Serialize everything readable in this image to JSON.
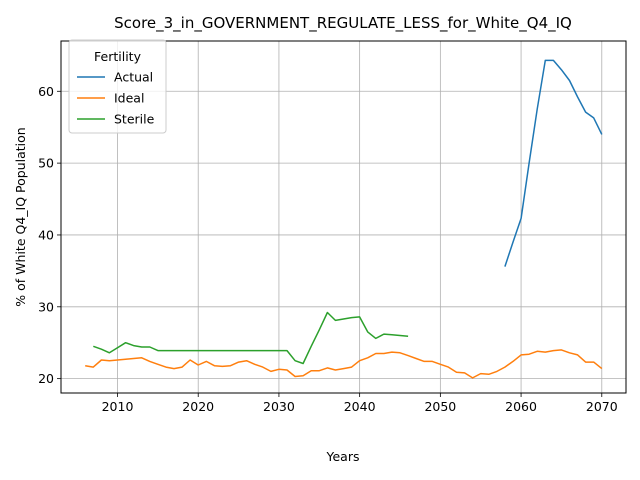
{
  "chart_data": {
    "type": "line",
    "title": "Score_3_in_GOVERNMENT_REGULATE_LESS_for_White_Q4_IQ",
    "xlabel": "Years",
    "ylabel": "% of White Q4_IQ Population",
    "xlim": [
      2003,
      2073
    ],
    "ylim": [
      18,
      67
    ],
    "xticks": [
      2010,
      2020,
      2030,
      2040,
      2050,
      2060,
      2070
    ],
    "yticks": [
      20,
      30,
      40,
      50,
      60
    ],
    "grid": true,
    "legend": {
      "title": "Fertility",
      "placement": "top-left"
    },
    "series": [
      {
        "name": "Actual",
        "color": "#1f77b4",
        "x": [
          2058,
          2059,
          2060,
          2061,
          2062,
          2063,
          2064,
          2065,
          2066,
          2067,
          2068,
          2069,
          2070
        ],
        "y": [
          35.6,
          39.0,
          42.3,
          50.0,
          57.5,
          64.3,
          64.3,
          63.0,
          61.5,
          59.2,
          57.1,
          56.3,
          54.0
        ]
      },
      {
        "name": "Ideal",
        "color": "#ff7f0e",
        "x": [
          2006,
          2007,
          2008,
          2009,
          2010,
          2011,
          2012,
          2013,
          2014,
          2015,
          2016,
          2017,
          2018,
          2019,
          2020,
          2021,
          2022,
          2023,
          2024,
          2025,
          2026,
          2027,
          2028,
          2029,
          2030,
          2031,
          2032,
          2033,
          2034,
          2035,
          2036,
          2037,
          2038,
          2039,
          2040,
          2041,
          2042,
          2043,
          2044,
          2045,
          2046,
          2047,
          2048,
          2049,
          2050,
          2051,
          2052,
          2053,
          2054,
          2055,
          2056,
          2057,
          2058,
          2059,
          2060,
          2061,
          2062,
          2063,
          2064,
          2065,
          2066,
          2067,
          2068,
          2069,
          2070
        ],
        "y": [
          21.8,
          21.6,
          22.6,
          22.5,
          22.6,
          22.7,
          22.8,
          22.9,
          22.4,
          22.0,
          21.6,
          21.4,
          21.6,
          22.6,
          21.9,
          22.4,
          21.8,
          21.7,
          21.8,
          22.3,
          22.5,
          22.0,
          21.6,
          21.0,
          21.3,
          21.2,
          20.3,
          20.4,
          21.1,
          21.1,
          21.5,
          21.2,
          21.4,
          21.6,
          22.5,
          22.9,
          23.5,
          23.5,
          23.7,
          23.6,
          23.2,
          22.8,
          22.4,
          22.4,
          22.0,
          21.6,
          20.9,
          20.8,
          20.1,
          20.7,
          20.6,
          21.0,
          21.6,
          22.4,
          23.3,
          23.4,
          23.8,
          23.7,
          23.9,
          24.0,
          23.6,
          23.3,
          22.3,
          22.3,
          21.4
        ]
      },
      {
        "name": "Sterile",
        "color": "#2ca02c",
        "x": [
          2007,
          2008,
          2009,
          2010,
          2011,
          2012,
          2013,
          2014,
          2015,
          2016,
          2017,
          2018,
          2019,
          2020,
          2021,
          2022,
          2023,
          2024,
          2025,
          2026,
          2027,
          2028,
          2029,
          2030,
          2031,
          2032,
          2033,
          2034,
          2035,
          2036,
          2037,
          2038,
          2039,
          2040,
          2041,
          2042,
          2043,
          2044,
          2045,
          2046
        ],
        "y": [
          24.5,
          24.1,
          23.6,
          24.3,
          25.0,
          24.6,
          24.4,
          24.4,
          23.9,
          23.9,
          23.9,
          23.9,
          23.9,
          23.9,
          23.9,
          23.9,
          23.9,
          23.9,
          23.9,
          23.9,
          23.9,
          23.9,
          23.9,
          23.9,
          23.9,
          22.5,
          22.1,
          24.5,
          26.8,
          29.2,
          28.1,
          28.3,
          28.5,
          28.6,
          26.5,
          25.6,
          26.2,
          26.1,
          26.0,
          25.9
        ]
      }
    ]
  }
}
